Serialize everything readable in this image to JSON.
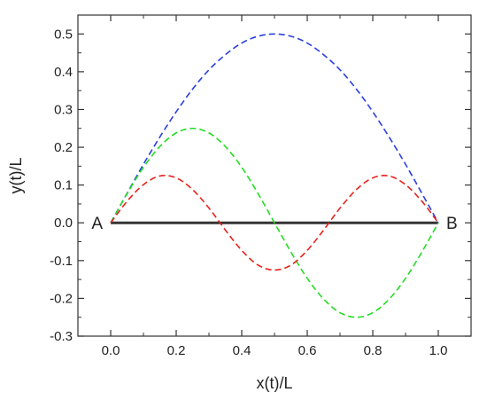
{
  "chart_data": {
    "type": "line",
    "title": "",
    "xlabel": "x(t)/L",
    "ylabel": "y(t)/L",
    "xlim": [
      -0.1,
      1.1
    ],
    "ylim": [
      -0.3,
      0.55
    ],
    "grid": false,
    "legend": "none",
    "xticks": [
      "0.0",
      "0.2",
      "0.4",
      "0.6",
      "0.8",
      "1.0"
    ],
    "yticks": [
      "-0.3",
      "-0.2",
      "-0.1",
      "0.0",
      "0.1",
      "0.2",
      "0.3",
      "0.4",
      "0.5"
    ],
    "baseline": {
      "x": [
        0.0,
        1.0
      ],
      "y": [
        0.0,
        0.0
      ],
      "color": "#333333"
    },
    "point_labels": [
      {
        "text": "A",
        "x": 0.0,
        "y": 0.0
      },
      {
        "text": "B",
        "x": 1.0,
        "y": 0.0
      }
    ],
    "series": [
      {
        "color": "#2a3fe0",
        "x": [
          0.0,
          0.05,
          0.1,
          0.15,
          0.2,
          0.25,
          0.3,
          0.35,
          0.4,
          0.45,
          0.5,
          0.55,
          0.6,
          0.65,
          0.7,
          0.75,
          0.8,
          0.85,
          0.9,
          0.95,
          1.0
        ],
        "y": [
          0.0,
          0.078,
          0.155,
          0.227,
          0.294,
          0.354,
          0.405,
          0.445,
          0.476,
          0.494,
          0.5,
          0.494,
          0.476,
          0.445,
          0.405,
          0.354,
          0.294,
          0.227,
          0.155,
          0.078,
          0.0
        ]
      },
      {
        "color": "#22dd22",
        "x": [
          0.0,
          0.05,
          0.1,
          0.15,
          0.2,
          0.25,
          0.3,
          0.35,
          0.4,
          0.45,
          0.5,
          0.55,
          0.6,
          0.65,
          0.7,
          0.75,
          0.8,
          0.85,
          0.9,
          0.95,
          1.0
        ],
        "y": [
          0.0,
          0.077,
          0.147,
          0.202,
          0.238,
          0.25,
          0.238,
          0.202,
          0.147,
          0.077,
          0.0,
          -0.077,
          -0.147,
          -0.202,
          -0.238,
          -0.25,
          -0.238,
          -0.202,
          -0.147,
          -0.077,
          0.0
        ]
      },
      {
        "color": "#e8221c",
        "x": [
          0.0,
          0.05,
          0.1,
          0.15,
          0.2,
          0.25,
          0.3,
          0.35,
          0.4,
          0.45,
          0.5,
          0.55,
          0.6,
          0.65,
          0.7,
          0.75,
          0.8,
          0.85,
          0.9,
          0.95,
          1.0
        ],
        "y": [
          0.0,
          0.057,
          0.101,
          0.124,
          0.119,
          0.088,
          0.039,
          -0.019,
          -0.073,
          -0.112,
          -0.125,
          -0.112,
          -0.073,
          -0.019,
          0.039,
          0.088,
          0.119,
          0.124,
          0.101,
          0.057,
          0.0
        ]
      }
    ]
  }
}
